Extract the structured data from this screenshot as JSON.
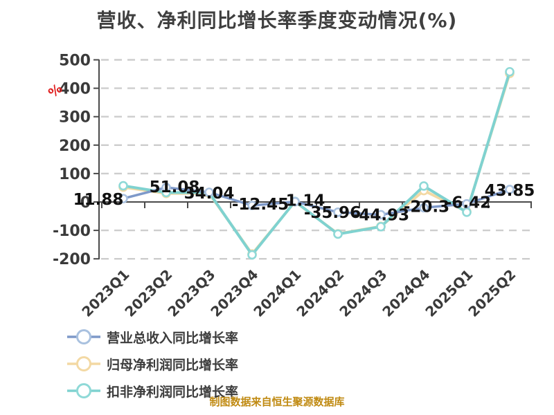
{
  "chart_data": {
    "type": "line",
    "title": "营收、净利同比增长率季度变动情况(%)",
    "unit": "%",
    "categories": [
      "2023Q1",
      "2023Q2",
      "2023Q3",
      "2023Q4",
      "2024Q1",
      "2024Q2",
      "2024Q3",
      "2024Q4",
      "2025Q1",
      "2025Q2"
    ],
    "series": [
      {
        "name": "营业总收入同比增长率",
        "color": "#7e99c9",
        "marker_ring": "#a9c1df",
        "values": [
          11.88,
          51.08,
          34.04,
          -12.45,
          1.14,
          -35.96,
          -44.93,
          -20.3,
          -6.42,
          43.85
        ],
        "data_labels": true
      },
      {
        "name": "归母净利润同比增长率",
        "color": "#f3d9a4",
        "marker_ring": "#f3d9a4",
        "values": [
          52,
          30,
          30,
          -183,
          1,
          -112,
          -86,
          40,
          -34,
          452
        ],
        "data_labels": false
      },
      {
        "name": "扣非净利润同比增长率",
        "color": "#7fd2d0",
        "marker_ring": "#8fd9d7",
        "values": [
          57,
          33,
          33,
          -186,
          2,
          -113,
          -87,
          56,
          -36,
          458
        ],
        "data_labels": false
      }
    ],
    "yticks": [
      500,
      400,
      300,
      200,
      100,
      0,
      -100,
      -200
    ],
    "ylim": [
      -200,
      500
    ],
    "grid": "dashed",
    "legend_position": "bottom"
  },
  "source_note": "制图数据来自恒生聚源数据库",
  "colors": {
    "background": "#ffffff",
    "title_text": "#3f3f3f",
    "axis": "#4a4a4a",
    "gridline": "#cdcdcd",
    "tick_label": "#3a3a3a",
    "value_label": "#111111",
    "unit_label_red": "#e02020",
    "legend_text": "#3c3c3c",
    "footer_text": "#c08a12"
  }
}
